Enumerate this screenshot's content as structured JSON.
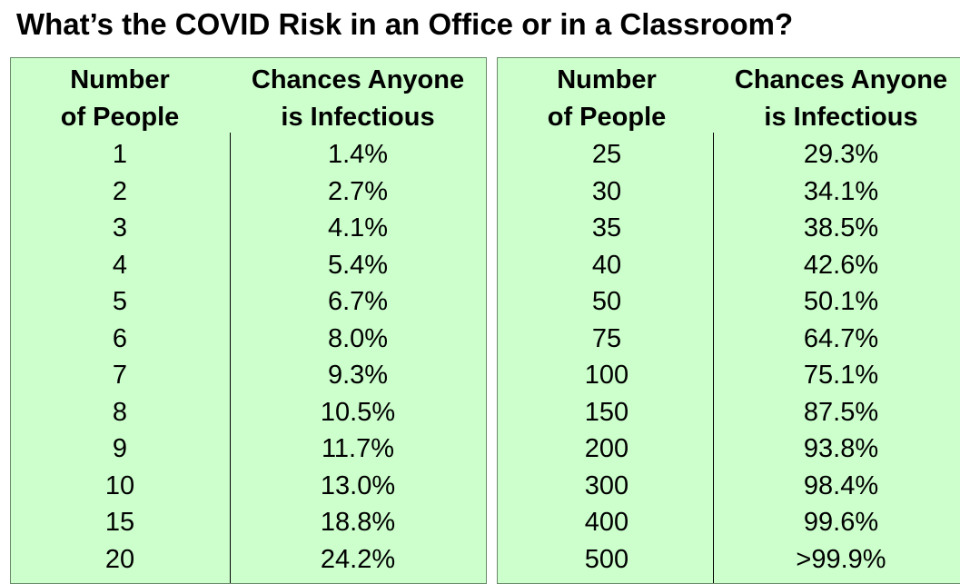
{
  "title": "What’s the COVID Risk in an Office or in a Classroom?",
  "colors": {
    "panel_background": "#ccffcc",
    "text": "#000000"
  },
  "chart_data": {
    "type": "table",
    "title": "What’s the COVID Risk in an Office or in a Classroom?",
    "columns": [
      "Number of People",
      "Chances Anyone is Infectious"
    ],
    "column_headers": {
      "people_line1": "Number",
      "people_line2": "of People",
      "chance_line1": "Chances Anyone",
      "chance_line2": "is Infectious"
    },
    "tables": [
      {
        "rows": [
          {
            "people": "1",
            "chance": "1.4%"
          },
          {
            "people": "2",
            "chance": "2.7%"
          },
          {
            "people": "3",
            "chance": "4.1%"
          },
          {
            "people": "4",
            "chance": "5.4%"
          },
          {
            "people": "5",
            "chance": "6.7%"
          },
          {
            "people": "6",
            "chance": "8.0%"
          },
          {
            "people": "7",
            "chance": "9.3%"
          },
          {
            "people": "8",
            "chance": "10.5%"
          },
          {
            "people": "9",
            "chance": "11.7%"
          },
          {
            "people": "10",
            "chance": "13.0%"
          },
          {
            "people": "15",
            "chance": "18.8%"
          },
          {
            "people": "20",
            "chance": "24.2%"
          }
        ]
      },
      {
        "rows": [
          {
            "people": "25",
            "chance": "29.3%"
          },
          {
            "people": "30",
            "chance": "34.1%"
          },
          {
            "people": "35",
            "chance": "38.5%"
          },
          {
            "people": "40",
            "chance": "42.6%"
          },
          {
            "people": "50",
            "chance": "50.1%"
          },
          {
            "people": "75",
            "chance": "64.7%"
          },
          {
            "people": "100",
            "chance": "75.1%"
          },
          {
            "people": "150",
            "chance": "87.5%"
          },
          {
            "people": "200",
            "chance": "93.8%"
          },
          {
            "people": "300",
            "chance": "98.4%"
          },
          {
            "people": "400",
            "chance": "99.6%"
          },
          {
            "people": "500",
            "chance": ">99.9%"
          }
        ]
      }
    ]
  }
}
